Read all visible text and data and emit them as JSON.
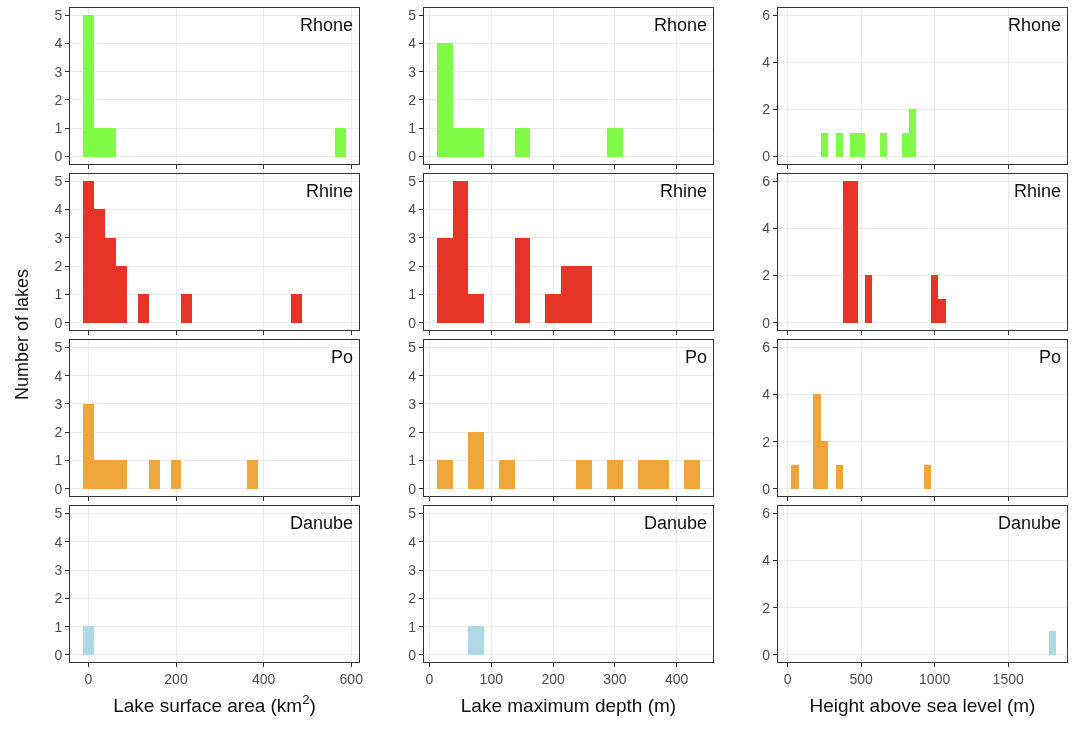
{
  "chart_data": [
    {
      "type": "histogram",
      "ylabel": "Number of lakes",
      "annotations": [
        "Rhone"
      ],
      "color": "#7ffb47",
      "bins": [
        -12.5,
        12.5,
        37.5,
        62.5,
        87.5,
        112.5,
        137.5,
        162.5,
        187.5,
        212.5,
        237.5,
        262.5,
        287.5,
        312.5,
        337.5,
        362.5,
        387.5,
        412.5,
        437.5,
        462.5,
        487.5,
        512.5,
        537.5,
        562.5,
        587.5
      ],
      "values": [
        5,
        1,
        1,
        0,
        0,
        0,
        0,
        0,
        0,
        0,
        0,
        0,
        0,
        0,
        0,
        0,
        0,
        0,
        0,
        0,
        0,
        0,
        0,
        1
      ],
      "xlim": [
        -42,
        618
      ],
      "xticks": [
        0,
        200,
        400,
        600
      ],
      "ylim": [
        -0.25,
        5.25
      ],
      "yticks": [
        0,
        1,
        2,
        3,
        4,
        5
      ],
      "grid": true,
      "tick_labels": "y"
    },
    {
      "type": "histogram",
      "annotations": [
        "Rhone"
      ],
      "color": "#7ffb47",
      "bins": [
        12.5,
        37.5,
        62.5,
        87.5,
        112.5,
        137.5,
        162.5,
        187.5,
        212.5,
        237.5,
        262.5,
        287.5,
        312.5,
        337.5,
        362.5,
        387.5,
        412.5,
        437.5
      ],
      "values": [
        4,
        1,
        1,
        0,
        0,
        1,
        0,
        0,
        0,
        0,
        0,
        1,
        0,
        0,
        0,
        0,
        0
      ],
      "xlim": [
        -9,
        459
      ],
      "xticks": [
        0,
        100,
        200,
        300,
        400
      ],
      "ylim": [
        -0.25,
        5.25
      ],
      "yticks": [
        0,
        1,
        2,
        3,
        4,
        5
      ],
      "grid": true,
      "tick_labels": "y"
    },
    {
      "type": "histogram",
      "annotations": [
        "Rhone"
      ],
      "color": "#7ffb47",
      "bins": [
        25,
        75,
        125,
        175,
        225,
        275,
        325,
        375,
        425,
        475,
        525,
        575,
        625,
        675,
        725,
        775,
        825,
        875,
        925,
        975,
        1025,
        1075,
        1125,
        1175,
        1225,
        1275,
        1325,
        1375,
        1425,
        1475,
        1525,
        1575,
        1625,
        1675,
        1725,
        1775,
        1825
      ],
      "values": [
        0,
        0,
        0,
        0,
        1,
        0,
        1,
        0,
        1,
        1,
        0,
        0,
        1,
        0,
        0,
        1,
        2,
        0,
        0,
        0,
        0,
        0,
        0,
        0,
        0,
        0,
        0,
        0,
        0,
        0,
        0,
        0,
        0,
        0,
        0,
        0
      ],
      "xlim": [
        -66,
        1900
      ],
      "xticks": [
        0,
        500,
        1000,
        1500
      ],
      "ylim": [
        -0.3,
        6.3
      ],
      "yticks": [
        0,
        2,
        4,
        6
      ],
      "grid": true,
      "tick_labels": "y"
    },
    {
      "type": "histogram",
      "annotations": [
        "Rhine"
      ],
      "color": "#e63426",
      "bins": [
        -12.5,
        12.5,
        37.5,
        62.5,
        87.5,
        112.5,
        137.5,
        162.5,
        187.5,
        212.5,
        237.5,
        262.5,
        287.5,
        312.5,
        337.5,
        362.5,
        387.5,
        412.5,
        437.5,
        462.5,
        487.5,
        512.5,
        537.5,
        562.5,
        587.5
      ],
      "values": [
        5,
        4,
        3,
        2,
        0,
        1,
        0,
        0,
        0,
        1,
        0,
        0,
        0,
        0,
        0,
        0,
        0,
        0,
        0,
        1,
        0,
        0,
        0,
        0
      ],
      "xlim": [
        -42,
        618
      ],
      "xticks": [
        0,
        200,
        400,
        600
      ],
      "ylim": [
        -0.25,
        5.25
      ],
      "yticks": [
        0,
        1,
        2,
        3,
        4,
        5
      ],
      "grid": true,
      "tick_labels": "y"
    },
    {
      "type": "histogram",
      "annotations": [
        "Rhine"
      ],
      "color": "#e63426",
      "bins": [
        12.5,
        37.5,
        62.5,
        87.5,
        112.5,
        137.5,
        162.5,
        187.5,
        212.5,
        237.5,
        262.5,
        287.5,
        312.5,
        337.5,
        362.5,
        387.5,
        412.5,
        437.5
      ],
      "values": [
        3,
        5,
        1,
        0,
        0,
        3,
        0,
        1,
        2,
        2,
        0,
        0,
        0,
        0,
        0,
        0,
        0
      ],
      "xlim": [
        -9,
        459
      ],
      "xticks": [
        0,
        100,
        200,
        300,
        400
      ],
      "ylim": [
        -0.25,
        5.25
      ],
      "yticks": [
        0,
        1,
        2,
        3,
        4,
        5
      ],
      "grid": true,
      "tick_labels": "y"
    },
    {
      "type": "histogram",
      "annotations": [
        "Rhine"
      ],
      "color": "#e63426",
      "bins": [
        25,
        75,
        125,
        175,
        225,
        275,
        325,
        375,
        425,
        475,
        525,
        575,
        625,
        675,
        725,
        775,
        825,
        875,
        925,
        975,
        1025,
        1075,
        1125,
        1175,
        1225,
        1275,
        1325,
        1375,
        1425,
        1475,
        1525,
        1575,
        1625,
        1675,
        1725,
        1775,
        1825
      ],
      "values": [
        0,
        0,
        0,
        0,
        0,
        0,
        0,
        6,
        6,
        0,
        2,
        0,
        0,
        0,
        0,
        0,
        0,
        0,
        0,
        2,
        1,
        0,
        0,
        0,
        0,
        0,
        0,
        0,
        0,
        0,
        0,
        0,
        0,
        0,
        0,
        0
      ],
      "xlim": [
        -66,
        1900
      ],
      "xticks": [
        0,
        500,
        1000,
        1500
      ],
      "ylim": [
        -0.3,
        6.3
      ],
      "yticks": [
        0,
        2,
        4,
        6
      ],
      "grid": true,
      "tick_labels": "y"
    },
    {
      "type": "histogram",
      "annotations": [
        "Po"
      ],
      "color": "#eea63a",
      "bins": [
        -12.5,
        12.5,
        37.5,
        62.5,
        87.5,
        112.5,
        137.5,
        162.5,
        187.5,
        212.5,
        237.5,
        262.5,
        287.5,
        312.5,
        337.5,
        362.5,
        387.5,
        412.5,
        437.5,
        462.5,
        487.5,
        512.5,
        537.5,
        562.5,
        587.5
      ],
      "values": [
        3,
        1,
        1,
        1,
        0,
        0,
        1,
        0,
        1,
        0,
        0,
        0,
        0,
        0,
        0,
        1,
        0,
        0,
        0,
        0,
        0,
        0,
        0,
        0
      ],
      "xlim": [
        -42,
        618
      ],
      "xticks": [
        0,
        200,
        400,
        600
      ],
      "ylim": [
        -0.25,
        5.25
      ],
      "yticks": [
        0,
        1,
        2,
        3,
        4,
        5
      ],
      "grid": true,
      "tick_labels": "y"
    },
    {
      "type": "histogram",
      "annotations": [
        "Po"
      ],
      "color": "#eea63a",
      "bins": [
        12.5,
        37.5,
        62.5,
        87.5,
        112.5,
        137.5,
        162.5,
        187.5,
        212.5,
        237.5,
        262.5,
        287.5,
        312.5,
        337.5,
        362.5,
        387.5,
        412.5,
        437.5
      ],
      "values": [
        1,
        0,
        2,
        0,
        1,
        0,
        0,
        0,
        0,
        1,
        0,
        1,
        0,
        1,
        1,
        0,
        1
      ],
      "xlim": [
        -9,
        459
      ],
      "xticks": [
        0,
        100,
        200,
        300,
        400
      ],
      "ylim": [
        -0.25,
        5.25
      ],
      "yticks": [
        0,
        1,
        2,
        3,
        4,
        5
      ],
      "grid": true,
      "tick_labels": "y"
    },
    {
      "type": "histogram",
      "annotations": [
        "Po"
      ],
      "color": "#eea63a",
      "bins": [
        25,
        75,
        125,
        175,
        225,
        275,
        325,
        375,
        425,
        475,
        525,
        575,
        625,
        675,
        725,
        775,
        825,
        875,
        925,
        975,
        1025,
        1075,
        1125,
        1175,
        1225,
        1275,
        1325,
        1375,
        1425,
        1475,
        1525,
        1575,
        1625,
        1675,
        1725,
        1775,
        1825
      ],
      "values": [
        1,
        0,
        0,
        4,
        2,
        0,
        1,
        0,
        0,
        0,
        0,
        0,
        0,
        0,
        0,
        0,
        0,
        0,
        1,
        0,
        0,
        0,
        0,
        0,
        0,
        0,
        0,
        0,
        0,
        0,
        0,
        0,
        0,
        0,
        0,
        0
      ],
      "xlim": [
        -66,
        1900
      ],
      "xticks": [
        0,
        500,
        1000,
        1500
      ],
      "ylim": [
        -0.3,
        6.3
      ],
      "yticks": [
        0,
        2,
        4,
        6
      ],
      "grid": true,
      "tick_labels": "y"
    },
    {
      "type": "histogram",
      "xlabel": "Lake surface area (km$^{2}$)",
      "annotations": [
        "Danube"
      ],
      "color": "#add8e6",
      "bins": [
        -12.5,
        12.5,
        37.5,
        62.5,
        87.5,
        112.5,
        137.5,
        162.5,
        187.5,
        212.5,
        237.5,
        262.5,
        287.5,
        312.5,
        337.5,
        362.5,
        387.5,
        412.5,
        437.5,
        462.5,
        487.5,
        512.5,
        537.5,
        562.5,
        587.5
      ],
      "values": [
        1,
        0,
        0,
        0,
        0,
        0,
        0,
        0,
        0,
        0,
        0,
        0,
        0,
        0,
        0,
        0,
        0,
        0,
        0,
        0,
        0,
        0,
        0,
        0
      ],
      "xlim": [
        -42,
        618
      ],
      "xticks": [
        0,
        200,
        400,
        600
      ],
      "ylim": [
        -0.25,
        5.25
      ],
      "yticks": [
        0,
        1,
        2,
        3,
        4,
        5
      ],
      "grid": true
    },
    {
      "type": "histogram",
      "xlabel": "Lake maximum depth (m)",
      "annotations": [
        "Danube"
      ],
      "color": "#add8e6",
      "bins": [
        12.5,
        37.5,
        62.5,
        87.5,
        112.5,
        137.5,
        162.5,
        187.5,
        212.5,
        237.5,
        262.5,
        287.5,
        312.5,
        337.5,
        362.5,
        387.5,
        412.5,
        437.5
      ],
      "values": [
        0,
        0,
        1,
        0,
        0,
        0,
        0,
        0,
        0,
        0,
        0,
        0,
        0,
        0,
        0,
        0,
        0
      ],
      "xlim": [
        -9,
        459
      ],
      "xticks": [
        0,
        100,
        200,
        300,
        400
      ],
      "ylim": [
        -0.25,
        5.25
      ],
      "yticks": [
        0,
        1,
        2,
        3,
        4,
        5
      ],
      "grid": true
    },
    {
      "type": "histogram",
      "xlabel": "Height above sea level (m)",
      "annotations": [
        "Danube"
      ],
      "color": "#add8e6",
      "bins": [
        25,
        75,
        125,
        175,
        225,
        275,
        325,
        375,
        425,
        475,
        525,
        575,
        625,
        675,
        725,
        775,
        825,
        875,
        925,
        975,
        1025,
        1075,
        1125,
        1175,
        1225,
        1275,
        1325,
        1375,
        1425,
        1475,
        1525,
        1575,
        1625,
        1675,
        1725,
        1775,
        1825
      ],
      "values": [
        0,
        0,
        0,
        0,
        0,
        0,
        0,
        0,
        0,
        0,
        0,
        0,
        0,
        0,
        0,
        0,
        0,
        0,
        0,
        0,
        0,
        0,
        0,
        0,
        0,
        0,
        0,
        0,
        0,
        0,
        0,
        0,
        0,
        0,
        0,
        1
      ],
      "xlim": [
        -66,
        1900
      ],
      "xticks": [
        0,
        500,
        1000,
        1500
      ],
      "ylim": [
        -0.3,
        6.3
      ],
      "yticks": [
        0,
        2,
        4,
        6
      ],
      "grid": true
    }
  ]
}
